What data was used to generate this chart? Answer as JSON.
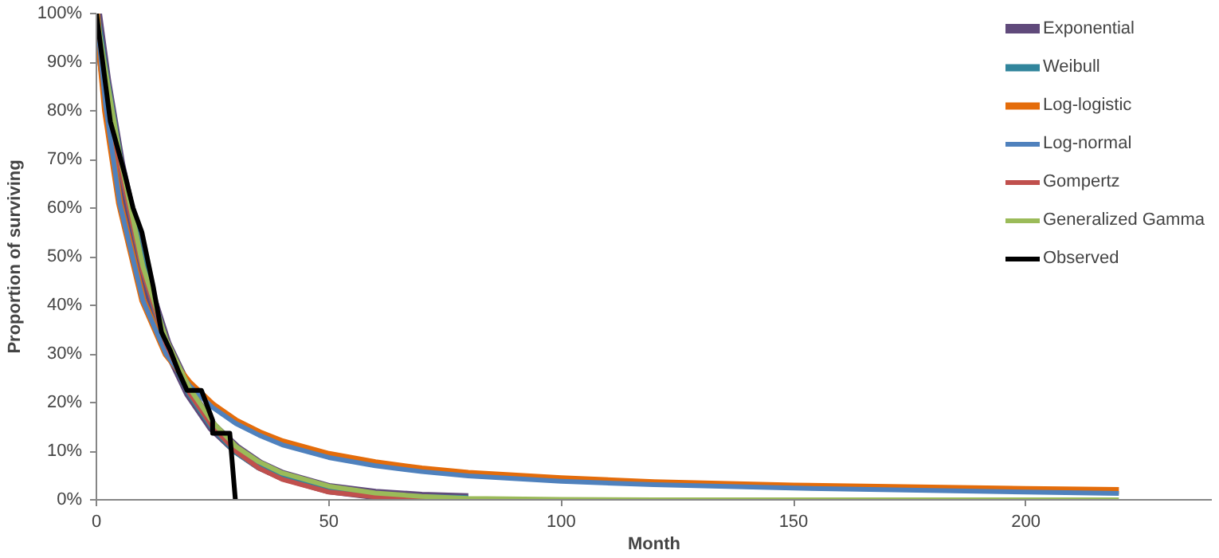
{
  "chart_data": {
    "type": "line",
    "xlabel": "Month",
    "ylabel": "Proportion of surviving",
    "x": [
      0,
      2,
      5,
      10,
      15,
      20,
      25,
      30,
      35,
      40,
      50,
      60,
      70,
      80,
      100,
      120,
      150,
      200,
      220
    ],
    "series": [
      {
        "name": "Exponential",
        "color": "#604a7b",
        "values": [
          100,
          86,
          69,
          47,
          32,
          22,
          15,
          10.5,
          7.2,
          5,
          2.3,
          1.1,
          0.5,
          0.2,
          null,
          null,
          null,
          null,
          null
        ]
      },
      {
        "name": "Weibull",
        "color": "#31859c",
        "values": [
          100,
          87,
          70,
          48,
          32,
          22,
          15,
          10,
          6.8,
          4.6,
          2,
          0.9,
          0.4,
          0.2,
          null,
          null,
          null,
          null,
          null
        ]
      },
      {
        "name": "Log-logistic",
        "color": "#e46c0a",
        "values": [
          100,
          80,
          61,
          41,
          30,
          24,
          19.5,
          16.2,
          13.8,
          11.9,
          9.3,
          7.6,
          6.3,
          5.4,
          4.3,
          3.5,
          2.8,
          2.1,
          1.9
        ]
      },
      {
        "name": "Log-normal",
        "color": "#4f81bd",
        "values": [
          100,
          81,
          61,
          41,
          30,
          23.5,
          19,
          15.7,
          13.3,
          11.3,
          8.7,
          7,
          5.8,
          4.9,
          3.8,
          3.1,
          2.4,
          1.6,
          1.3
        ]
      },
      {
        "name": "Gompertz",
        "color": "#c0504d",
        "values": [
          100,
          86,
          69,
          47,
          32,
          22,
          15,
          10,
          6.5,
          4.2,
          1.6,
          0.6,
          0.2,
          0.1,
          null,
          null,
          null,
          null,
          null
        ]
      },
      {
        "name": "Generalized Gamma",
        "color": "#9bbb59",
        "values": [
          100,
          88,
          71,
          48,
          33,
          23,
          16,
          11,
          7.8,
          5.5,
          2.8,
          1.4,
          0.7,
          0.3,
          0.1,
          0,
          0,
          0,
          0
        ]
      },
      {
        "name": "Observed",
        "color": "#000000",
        "x": [
          0,
          3,
          6.1,
          7.9,
          9.8,
          12.2,
          14,
          15.9,
          17.7,
          19.5,
          22.6,
          25,
          25,
          28.7,
          29.9
        ],
        "values": [
          100,
          77.8,
          67,
          60,
          55,
          44,
          34.5,
          30.7,
          26.3,
          22.5,
          22.5,
          16.4,
          13.7,
          13.7,
          0
        ]
      }
    ],
    "xlim": [
      0,
      240
    ],
    "ylim": [
      0,
      100
    ],
    "xticks": [
      0,
      50,
      100,
      150,
      200
    ],
    "yticks": [
      {
        "value": 0,
        "label": "0%"
      },
      {
        "value": 10,
        "label": "10%"
      },
      {
        "value": 20,
        "label": "20%"
      },
      {
        "value": 30,
        "label": "30%"
      },
      {
        "value": 40,
        "label": "40%"
      },
      {
        "value": 50,
        "label": "50%"
      },
      {
        "value": 60,
        "label": "60%"
      },
      {
        "value": 70,
        "label": "70%"
      },
      {
        "value": 80,
        "label": "80%"
      },
      {
        "value": 90,
        "label": "90%"
      },
      {
        "value": 100,
        "label": "100%"
      }
    ],
    "grid": false,
    "legend": "top right",
    "marker": "none",
    "line_style": "solid"
  }
}
